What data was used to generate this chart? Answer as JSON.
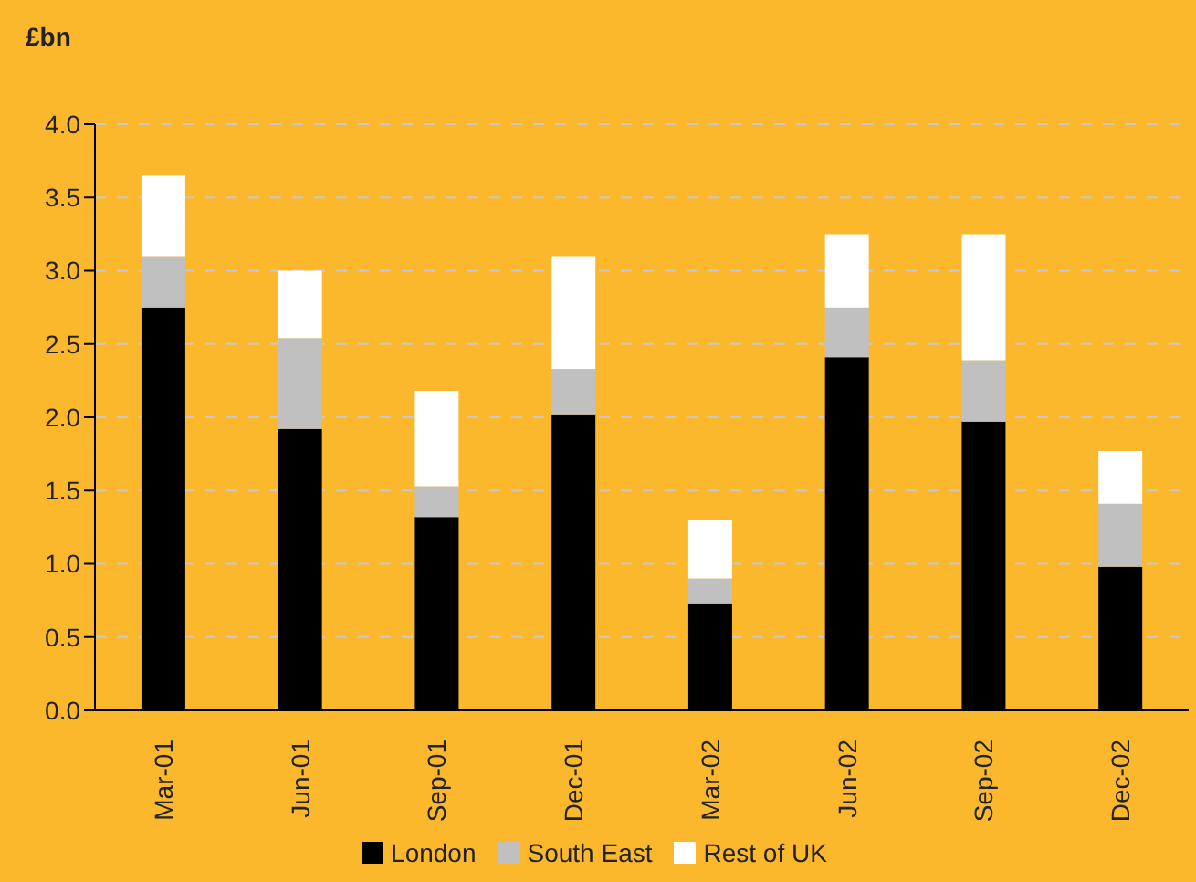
{
  "chart_data": {
    "type": "bar",
    "ylabel": "£bn",
    "stacked": true,
    "categories": [
      "Mar-01",
      "Jun-01",
      "Sep-01",
      "Dec-01",
      "Mar-02",
      "Jun-02",
      "Sep-02",
      "Dec-02"
    ],
    "series": [
      {
        "name": "London",
        "color": "#000000",
        "values": [
          2.75,
          1.92,
          1.32,
          2.02,
          0.73,
          2.41,
          1.97,
          0.98
        ]
      },
      {
        "name": "South East",
        "color": "#c0c0c0",
        "values": [
          0.35,
          0.62,
          0.21,
          0.31,
          0.17,
          0.34,
          0.42,
          0.43
        ]
      },
      {
        "name": "Rest of UK",
        "color": "#ffffff",
        "values": [
          0.55,
          0.46,
          0.65,
          0.77,
          0.4,
          0.5,
          0.86,
          0.36
        ]
      }
    ],
    "ylim": [
      0,
      4
    ],
    "yticks": [
      {
        "value": 0,
        "label": "0.0"
      },
      0.5,
      {
        "value": 1,
        "label": "1.0"
      },
      1.5,
      {
        "value": 2,
        "label": "2.0"
      },
      2.5,
      {
        "value": 3,
        "label": "3.0"
      },
      3.5,
      {
        "value": 4,
        "label": "4.0"
      }
    ],
    "grid": "y",
    "legend": "bottom"
  }
}
